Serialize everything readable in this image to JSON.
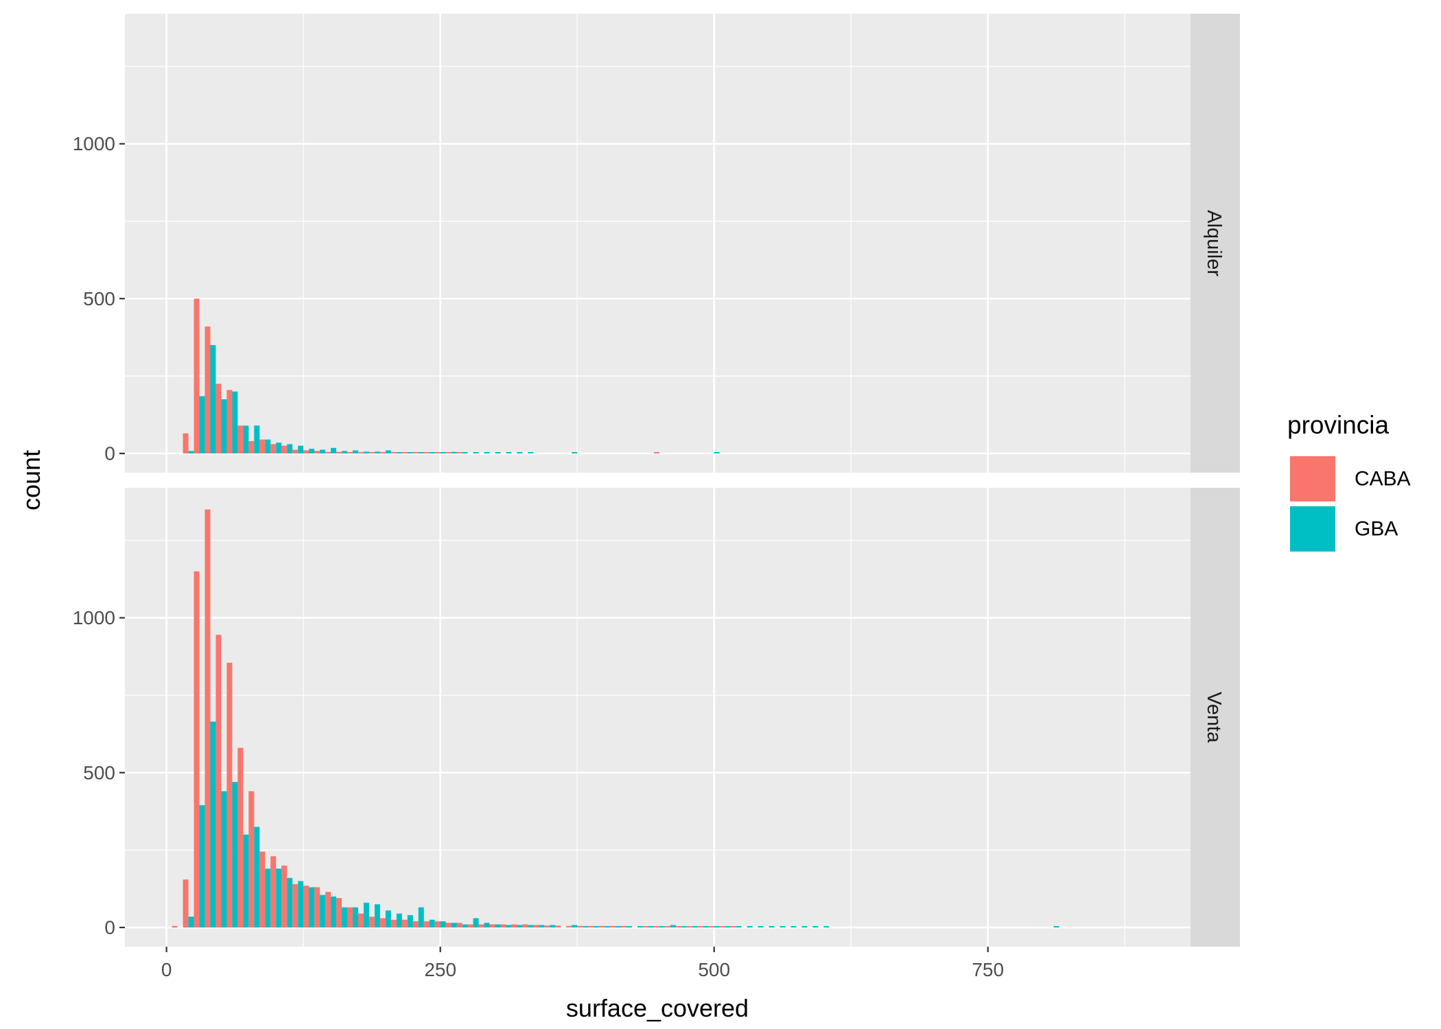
{
  "chart_data": {
    "type": "bar",
    "geom": "histogram",
    "xlabel": "surface_covered",
    "ylabel": "count",
    "x_ticks": [
      0,
      250,
      500,
      750
    ],
    "x_tick_labels": [
      "0",
      "250",
      "500",
      "750"
    ],
    "xlim": [
      -38,
      935
    ],
    "y_ticks": [
      0,
      500,
      1000
    ],
    "y_tick_labels": [
      "0",
      "500",
      "1000"
    ],
    "ylim": [
      -62,
      1420
    ],
    "grid": true,
    "bin_width": 10,
    "legend": {
      "title": "provincia",
      "position": "right",
      "entries": [
        {
          "label": "CABA",
          "color": "#F8766D"
        },
        {
          "label": "GBA",
          "color": "#00BFC4"
        }
      ]
    },
    "facets": [
      {
        "label": "Alquiler",
        "bin_centers": [
          10,
          20,
          30,
          40,
          50,
          60,
          70,
          80,
          90,
          100,
          110,
          120,
          130,
          140,
          150,
          160,
          170,
          180,
          190,
          200,
          210,
          220,
          230,
          240,
          250,
          260,
          270,
          280,
          290,
          300,
          310,
          320,
          330,
          340,
          350,
          360,
          370,
          380,
          390,
          400,
          410,
          420,
          430,
          440,
          450,
          460,
          470,
          480,
          490,
          500
        ],
        "series": [
          {
            "name": "CABA",
            "values": [
              0,
              65,
              500,
              410,
              225,
              205,
              90,
              40,
              45,
              30,
              25,
              12,
              10,
              8,
              5,
              5,
              4,
              3,
              2,
              2,
              2,
              1,
              1,
              1,
              1,
              1,
              1,
              0,
              0,
              0,
              0,
              0,
              0,
              0,
              0,
              0,
              0,
              0,
              0,
              0,
              0,
              0,
              0,
              0,
              3,
              0,
              0,
              0,
              0,
              0
            ]
          },
          {
            "name": "GBA",
            "values": [
              0,
              8,
              185,
              350,
              175,
              200,
              90,
              90,
              45,
              35,
              30,
              25,
              15,
              12,
              18,
              8,
              10,
              6,
              6,
              10,
              4,
              4,
              4,
              4,
              4,
              5,
              3,
              3,
              3,
              2,
              2,
              2,
              2,
              0,
              0,
              0,
              2,
              0,
              0,
              0,
              0,
              0,
              0,
              0,
              0,
              0,
              0,
              0,
              0,
              2
            ]
          }
        ]
      },
      {
        "label": "Venta",
        "bin_centers": [
          10,
          20,
          30,
          40,
          50,
          60,
          70,
          80,
          90,
          100,
          110,
          120,
          130,
          140,
          150,
          160,
          170,
          180,
          190,
          200,
          210,
          220,
          230,
          240,
          250,
          260,
          270,
          280,
          290,
          300,
          310,
          320,
          330,
          340,
          350,
          360,
          370,
          380,
          390,
          400,
          410,
          420,
          430,
          440,
          450,
          460,
          470,
          480,
          490,
          500,
          510,
          520,
          530,
          540,
          550,
          560,
          570,
          580,
          590,
          600,
          610,
          620,
          630,
          640,
          650,
          660,
          670,
          680,
          690,
          700,
          710,
          720,
          730,
          740,
          750,
          760,
          770,
          780,
          790,
          800,
          810,
          820,
          830,
          840,
          850,
          860,
          870,
          880,
          890,
          900
        ],
        "series": [
          {
            "name": "CABA",
            "values": [
              5,
              155,
              1150,
              1350,
              945,
              855,
              580,
              440,
              245,
              230,
              200,
              140,
              135,
              130,
              115,
              95,
              65,
              45,
              35,
              30,
              25,
              25,
              20,
              20,
              20,
              15,
              15,
              10,
              10,
              10,
              10,
              10,
              10,
              8,
              6,
              6,
              5,
              5,
              5,
              5,
              5,
              5,
              0,
              4,
              4,
              4,
              4,
              3,
              3,
              3,
              3,
              2,
              0,
              0,
              0,
              0,
              0,
              0,
              0,
              0,
              0,
              0,
              0,
              0,
              0,
              0,
              0,
              0,
              0,
              0,
              0,
              0,
              0,
              0,
              0,
              0,
              0,
              0,
              0,
              0,
              0,
              0,
              0,
              0,
              0,
              0,
              0,
              0,
              0,
              0
            ]
          },
          {
            "name": "GBA",
            "values": [
              0,
              35,
              395,
              665,
              440,
              470,
              300,
              325,
              190,
              190,
              160,
              150,
              130,
              105,
              100,
              65,
              65,
              80,
              75,
              55,
              45,
              40,
              65,
              25,
              20,
              15,
              10,
              30,
              15,
              10,
              8,
              8,
              8,
              8,
              8,
              0,
              8,
              4,
              4,
              4,
              4,
              4,
              4,
              4,
              4,
              8,
              4,
              4,
              2,
              4,
              2,
              2,
              2,
              2,
              2,
              2,
              2,
              2,
              2,
              2,
              0,
              0,
              0,
              0,
              0,
              0,
              0,
              0,
              0,
              0,
              0,
              0,
              0,
              0,
              0,
              0,
              0,
              0,
              0,
              0,
              4,
              0,
              0,
              0,
              0,
              0,
              0,
              0,
              0,
              0
            ]
          }
        ]
      }
    ]
  }
}
